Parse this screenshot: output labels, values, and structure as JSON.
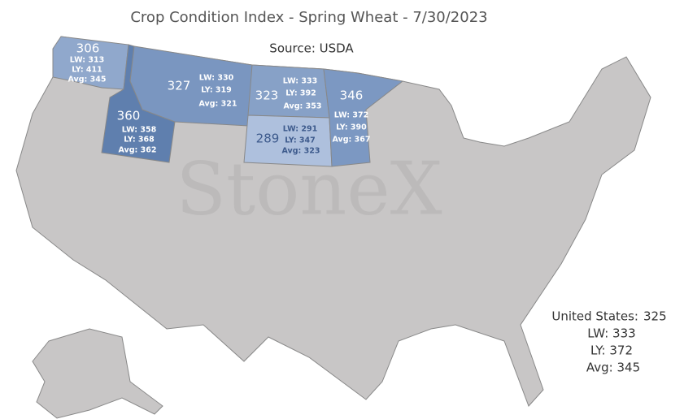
{
  "title": "Crop Condition Index - Spring Wheat - 7/30/2023",
  "source": "Source: USDA",
  "watermark": "StoneX",
  "states": [
    {
      "value": "306",
      "lw": "LW: 313",
      "ly": "LY: 411",
      "avg": "Avg: 345"
    },
    {
      "value": "360",
      "lw": "LW: 358",
      "ly": "LY: 368",
      "avg": "Avg: 362"
    },
    {
      "value": "327",
      "lw": "LW: 330",
      "ly": "LY: 319",
      "avg": "Avg: 321"
    },
    {
      "value": "323",
      "lw": "LW: 333",
      "ly": "LY: 392",
      "avg": "Avg: 353"
    },
    {
      "value": "289",
      "lw": "LW: 291",
      "ly": "LY: 347",
      "avg": "Avg: 323"
    },
    {
      "value": "346",
      "lw": "LW: 372",
      "ly": "LY: 390",
      "avg": "Avg: 367"
    }
  ],
  "united_states": {
    "label": "United States:",
    "value": "325",
    "lw": "LW: 333",
    "ly": "LY: 372",
    "avg": "Avg: 345"
  }
}
